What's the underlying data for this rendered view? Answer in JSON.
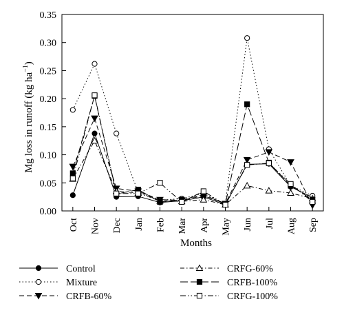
{
  "chart_data": {
    "type": "line",
    "xlabel": "Months",
    "ylabel_main": "Mg loss in runoff (kg ha",
    "ylabel_exp": "−1",
    "ylabel_close": ")",
    "categories": [
      "Oct",
      "Nov",
      "Dec",
      "Jan",
      "Feb",
      "Mar",
      "Apr",
      "May",
      "Jun",
      "Jul",
      "Aug",
      "Sep"
    ],
    "ylim": [
      0,
      0.35
    ],
    "yticks": [
      "0.00",
      "0.05",
      "0.10",
      "0.15",
      "0.20",
      "0.25",
      "0.30",
      "0.35"
    ],
    "grid": false,
    "legend_position": "bottom",
    "series": [
      {
        "name": "Control",
        "marker": "filled-circle",
        "dash": "solid",
        "values": [
          0.028,
          0.138,
          0.025,
          0.026,
          0.015,
          0.018,
          0.025,
          0.011,
          0.083,
          0.084,
          0.043,
          0.024
        ]
      },
      {
        "name": "Mixture",
        "marker": "open-circle",
        "dash": "dotted",
        "values": [
          0.18,
          0.262,
          0.138,
          0.033,
          0.019,
          0.022,
          0.031,
          0.013,
          0.308,
          0.11,
          0.045,
          0.027
        ]
      },
      {
        "name": "CRFB-60%",
        "marker": "filled-triangle-down",
        "dash": "dashed",
        "values": [
          0.079,
          0.165,
          0.04,
          0.035,
          0.02,
          0.019,
          0.027,
          0.013,
          0.091,
          0.105,
          0.087,
          0.01
        ]
      },
      {
        "name": "CRFG-60%",
        "marker": "open-triangle-up",
        "dash": "dashdot",
        "values": [
          0.057,
          0.125,
          0.035,
          0.032,
          0.018,
          0.017,
          0.02,
          0.011,
          0.045,
          0.036,
          0.032,
          0.022
        ]
      },
      {
        "name": "CRFB-100%",
        "marker": "filled-square",
        "dash": "longdash",
        "values": [
          0.067,
          0.205,
          0.03,
          0.038,
          0.016,
          0.02,
          0.029,
          0.012,
          0.19,
          0.086,
          0.045,
          0.02
        ]
      },
      {
        "name": "CRFG-100%",
        "marker": "open-square",
        "dash": "dashdotdot",
        "values": [
          0.058,
          0.206,
          0.031,
          0.031,
          0.05,
          0.016,
          0.035,
          0.011,
          0.082,
          0.085,
          0.048,
          0.016
        ]
      }
    ]
  }
}
